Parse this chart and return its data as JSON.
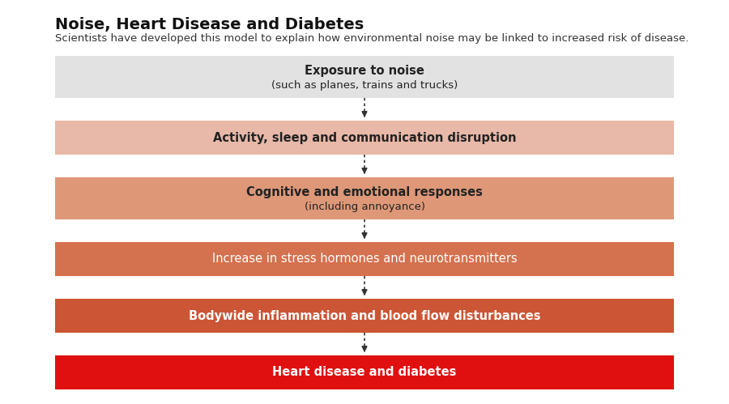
{
  "title": "Noise, Heart Disease and Diabetes",
  "subtitle": "Scientists have developed this model to explain how environmental noise may be linked to increased risk of disease.",
  "background_color": "#ffffff",
  "boxes": [
    {
      "main_text": "Exposure to noise",
      "sub_text": "(such as planes, trains and trucks)",
      "bg_color": "#e2e2e2",
      "text_color": "#222222",
      "bold_main": true
    },
    {
      "main_text": "Activity, sleep and communication disruption",
      "sub_text": "",
      "bg_color": "#e8b8a8",
      "text_color": "#222222",
      "bold_main": true
    },
    {
      "main_text": "Cognitive and emotional responses",
      "sub_text": "(including annoyance)",
      "bg_color": "#de9878",
      "text_color": "#222222",
      "bold_main": true
    },
    {
      "main_text": "Increase in stress hormones and neurotransmitters",
      "sub_text": "",
      "bg_color": "#d4714e",
      "text_color": "#ffffff",
      "bold_main": false
    },
    {
      "main_text": "Bodywide inflammation and blood flow disturbances",
      "sub_text": "",
      "bg_color": "#cc5535",
      "text_color": "#ffffff",
      "bold_main": true
    },
    {
      "main_text": "Heart disease and diabetes",
      "sub_text": "",
      "bg_color": "#e01010",
      "text_color": "#ffffff",
      "bold_main": true
    }
  ],
  "title_fontsize": 14,
  "subtitle_fontsize": 9.5,
  "main_text_fontsize": 10.5,
  "sub_text_fontsize": 9.5
}
